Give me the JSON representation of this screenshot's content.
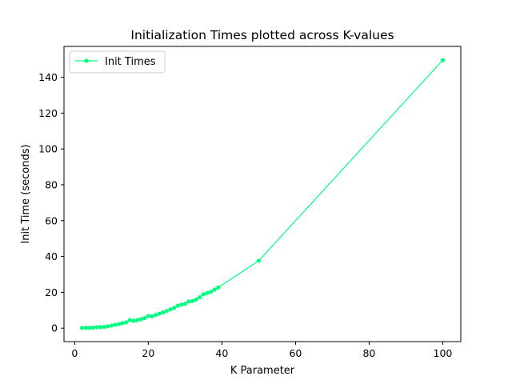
{
  "chart_data": {
    "type": "line",
    "title": "Initialization Times plotted across K-values",
    "xlabel": "K Parameter",
    "ylabel": "Init Time (seconds)",
    "xlim": [
      -2.9,
      104.9
    ],
    "ylim": [
      -7.5,
      157.2
    ],
    "xticks": [
      0,
      20,
      40,
      60,
      80,
      100
    ],
    "yticks": [
      0,
      20,
      40,
      60,
      80,
      100,
      120,
      140
    ],
    "grid": false,
    "legend_position": "upper-left",
    "series": [
      {
        "name": "Init Times",
        "color": "#00ff7f",
        "marker": "circle",
        "x": [
          2,
          3,
          4,
          5,
          6,
          7,
          8,
          9,
          10,
          11,
          12,
          13,
          14,
          15,
          16,
          17,
          18,
          19,
          20,
          21,
          22,
          23,
          24,
          25,
          26,
          27,
          28,
          29,
          30,
          31,
          32,
          33,
          34,
          35,
          36,
          37,
          38,
          39,
          50,
          100
        ],
        "y": [
          0.1,
          0.2,
          0.2,
          0.3,
          0.5,
          0.6,
          0.7,
          1.0,
          1.4,
          1.9,
          2.3,
          2.8,
          3.3,
          4.5,
          4.1,
          4.5,
          5.0,
          5.6,
          6.8,
          6.6,
          7.4,
          8.1,
          8.8,
          9.6,
          10.5,
          11.3,
          12.5,
          13.1,
          13.6,
          14.9,
          15.1,
          16.0,
          17.2,
          18.9,
          19.6,
          20.3,
          21.5,
          22.7,
          37.6,
          149.5
        ]
      }
    ]
  }
}
